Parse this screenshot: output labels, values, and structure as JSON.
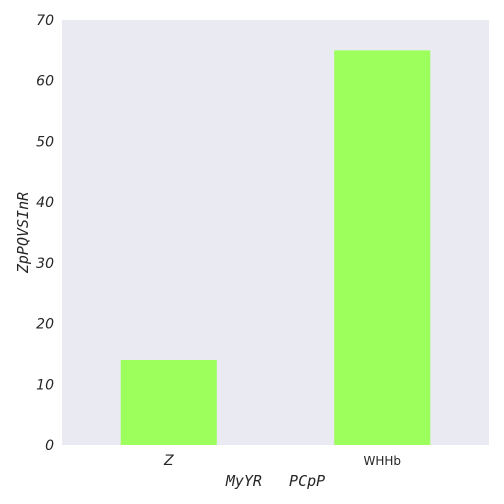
{
  "chart_data": {
    "type": "bar",
    "categories": [
      "Z",
      "WHHb"
    ],
    "values": [
      14,
      65
    ],
    "xlabel": "MyYR   PCpP",
    "ylabel": "ZpPQVSInR",
    "ylim": [
      0,
      70
    ],
    "yticks": [
      0,
      10,
      20,
      30,
      40,
      50,
      60,
      70
    ],
    "grid": false,
    "bar_color": "#9cff5c",
    "plot_background": "#eaeaf2"
  }
}
